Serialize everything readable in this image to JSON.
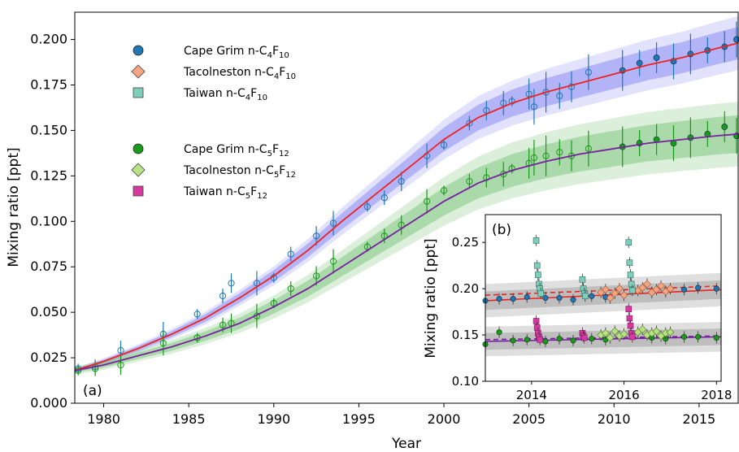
{
  "panel_main": {
    "tag": "(a)"
  },
  "panel_inset": {
    "tag": "(b)"
  },
  "legend": [
    {
      "name": "Cape Grim n-C",
      "sub": "4",
      "mid": "F",
      "sub2": "10",
      "marker": "circle",
      "color": "#1f77b4"
    },
    {
      "name": "Tacolneston n-C",
      "sub": "4",
      "mid": "F",
      "sub2": "10",
      "marker": "diamond",
      "color": "#f4a582"
    },
    {
      "name": "Taiwan n-C",
      "sub": "4",
      "mid": "F",
      "sub2": "10",
      "marker": "square",
      "color": "#7fcdbb"
    },
    {
      "name": "Cape Grim n-C",
      "sub": "5",
      "mid": "F",
      "sub2": "12",
      "marker": "circle",
      "color": "#1a9a1a"
    },
    {
      "name": "Tacolneston n-C",
      "sub": "5",
      "mid": "F",
      "sub2": "12",
      "marker": "diamond",
      "color": "#b8e186"
    },
    {
      "name": "Taiwan n-C",
      "sub": "5",
      "mid": "F",
      "sub2": "12",
      "marker": "square",
      "color": "#d63aa0"
    }
  ],
  "colors": {
    "c4_band": "#7b7bf2",
    "c4_line": "#ee2222",
    "c4_points": "#1f77b4",
    "c5_band": "#6fbf6f",
    "c5_line": "#7a1fa0",
    "c5_points": "#1a9a1a",
    "inset_band": "#808080"
  },
  "chart_data": [
    {
      "type": "line",
      "panel": "(a)",
      "xlabel": "Year",
      "ylabel": "Mixing ratio [ppt]",
      "xlim": [
        1978.3,
        2017.3
      ],
      "ylim": [
        0.0,
        0.215
      ],
      "xticks": [
        1980,
        1985,
        1990,
        1995,
        2000,
        2005,
        2010,
        2015
      ],
      "xtick_labels": [
        "1980",
        "1985",
        "1990",
        "1995",
        "2000",
        "2005",
        "2010",
        "2015"
      ],
      "yticks": [
        0.0,
        0.025,
        0.05,
        0.075,
        0.1,
        0.125,
        0.15,
        0.175,
        0.2
      ],
      "ytick_labels": [
        "0.000",
        "0.025",
        "0.050",
        "0.075",
        "0.100",
        "0.125",
        "0.150",
        "0.175",
        "0.200"
      ],
      "series": [
        {
          "name": "n-C4F10 model",
          "x": [
            1978.3,
            1980,
            1982,
            1984,
            1986,
            1988,
            1990,
            1992,
            1994,
            1996,
            1998,
            2000,
            2002,
            2004,
            2006,
            2008,
            2010,
            2012,
            2014,
            2016,
            2017.3
          ],
          "y": [
            0.018,
            0.023,
            0.03,
            0.038,
            0.047,
            0.058,
            0.07,
            0.084,
            0.1,
            0.115,
            0.13,
            0.145,
            0.157,
            0.165,
            0.171,
            0.176,
            0.181,
            0.186,
            0.19,
            0.195,
            0.198
          ]
        },
        {
          "name": "n-C5F12 model",
          "x": [
            1978.3,
            1980,
            1982,
            1984,
            1986,
            1988,
            1990,
            1992,
            1994,
            1996,
            1998,
            2000,
            2002,
            2004,
            2006,
            2008,
            2010,
            2012,
            2014,
            2016,
            2017.3
          ],
          "y": [
            0.018,
            0.021,
            0.026,
            0.031,
            0.037,
            0.044,
            0.053,
            0.063,
            0.075,
            0.087,
            0.099,
            0.111,
            0.121,
            0.128,
            0.133,
            0.137,
            0.14,
            0.143,
            0.145,
            0.147,
            0.148
          ]
        },
        {
          "name": "Cape Grim n-C4F10",
          "x": [
            1978.5,
            1979.5,
            1981,
            1983.5,
            1985.5,
            1987,
            1987.5,
            1989,
            1990,
            1991,
            1992.5,
            1993.5,
            1995.5,
            1996.5,
            1997.5,
            1999,
            2000,
            2001.5,
            2002.5,
            2003.5,
            2004,
            2005,
            2005.3,
            2006,
            2006.8,
            2007.5,
            2008.5,
            2010.5,
            2011.5,
            2012.5,
            2013.5,
            2014.5,
            2015.5,
            2016.5,
            2017.2
          ],
          "y": [
            0.019,
            0.02,
            0.029,
            0.038,
            0.049,
            0.059,
            0.066,
            0.066,
            0.069,
            0.082,
            0.092,
            0.099,
            0.108,
            0.113,
            0.122,
            0.136,
            0.142,
            0.154,
            0.161,
            0.165,
            0.166,
            0.17,
            0.163,
            0.171,
            0.169,
            0.174,
            0.182,
            0.183,
            0.187,
            0.19,
            0.188,
            0.192,
            0.194,
            0.196,
            0.2
          ]
        },
        {
          "name": "Cape Grim n-C5F12",
          "x": [
            1978.5,
            1979.5,
            1981,
            1983.5,
            1985.5,
            1987,
            1987.5,
            1989,
            1990,
            1991,
            1992.5,
            1993.5,
            1995.5,
            1996.5,
            1997.5,
            1999,
            2000,
            2001.5,
            2002.5,
            2003.5,
            2004,
            2005,
            2005.3,
            2006,
            2006.8,
            2007.5,
            2008.5,
            2010.5,
            2011.5,
            2012.5,
            2013.5,
            2014.5,
            2015.5,
            2016.5,
            2017.2
          ],
          "y": [
            0.018,
            0.019,
            0.021,
            0.033,
            0.036,
            0.043,
            0.044,
            0.048,
            0.055,
            0.063,
            0.07,
            0.078,
            0.086,
            0.092,
            0.098,
            0.111,
            0.117,
            0.122,
            0.124,
            0.126,
            0.129,
            0.132,
            0.135,
            0.136,
            0.138,
            0.136,
            0.14,
            0.141,
            0.143,
            0.145,
            0.143,
            0.146,
            0.148,
            0.152,
            0.147
          ]
        }
      ]
    },
    {
      "type": "scatter",
      "panel": "(b)",
      "ylabel": "Mixing ratio [ppt]",
      "xlim": [
        2013.0,
        2018.1
      ],
      "ylim": [
        0.1,
        0.28
      ],
      "xticks": [
        2014,
        2016,
        2018
      ],
      "xtick_labels": [
        "2014",
        "2016",
        "2018"
      ],
      "yticks": [
        0.1,
        0.15,
        0.2,
        0.25
      ],
      "ytick_labels": [
        "0.10",
        "0.15",
        "0.20",
        "0.25"
      ],
      "series": [
        {
          "name": "n-C4F10 model",
          "x": [
            2013.0,
            2018.1
          ],
          "y": [
            0.187,
            0.199
          ]
        },
        {
          "name": "n-C4F10 model (dashed)",
          "x": [
            2013.0,
            2018.1
          ],
          "y": [
            0.193,
            0.203
          ]
        },
        {
          "name": "n-C5F12 model",
          "x": [
            2013.0,
            2018.1
          ],
          "y": [
            0.143,
            0.148
          ]
        },
        {
          "name": "n-C5F12 model (dashed)",
          "x": [
            2013.0,
            2018.1
          ],
          "y": [
            0.145,
            0.149
          ]
        },
        {
          "name": "Taiwan n-C4F10",
          "x": [
            2014.1,
            2014.12,
            2014.14,
            2014.16,
            2014.18,
            2014.2,
            2015.1,
            2015.12,
            2015.14,
            2015.16,
            2016.1,
            2016.12,
            2016.14,
            2016.16,
            2016.18
          ],
          "y": [
            0.252,
            0.225,
            0.215,
            0.205,
            0.2,
            0.195,
            0.21,
            0.2,
            0.195,
            0.192,
            0.25,
            0.228,
            0.215,
            0.205,
            0.198
          ]
        },
        {
          "name": "Taiwan n-C5F12",
          "x": [
            2014.1,
            2014.12,
            2014.14,
            2014.16,
            2014.18,
            2015.1,
            2015.12,
            2015.14,
            2016.1,
            2016.12,
            2016.14,
            2016.16,
            2016.18
          ],
          "y": [
            0.165,
            0.158,
            0.152,
            0.148,
            0.145,
            0.152,
            0.149,
            0.147,
            0.178,
            0.168,
            0.16,
            0.152,
            0.148
          ]
        },
        {
          "name": "Tacolneston n-C4F10",
          "x": [
            2015.5,
            2015.6,
            2015.7,
            2015.8,
            2015.9,
            2016.0,
            2016.3,
            2016.4,
            2016.5,
            2016.6,
            2016.7,
            2016.8,
            2016.9,
            2017.0
          ],
          "y": [
            0.196,
            0.199,
            0.19,
            0.195,
            0.2,
            0.193,
            0.198,
            0.201,
            0.205,
            0.196,
            0.199,
            0.203,
            0.197,
            0.2
          ]
        },
        {
          "name": "Tacolneston n-C5F12",
          "x": [
            2015.5,
            2015.6,
            2015.7,
            2015.8,
            2015.9,
            2016.0,
            2016.3,
            2016.4,
            2016.5,
            2016.6,
            2016.7,
            2016.8,
            2016.9,
            2017.0
          ],
          "y": [
            0.15,
            0.152,
            0.147,
            0.154,
            0.149,
            0.151,
            0.153,
            0.156,
            0.15,
            0.152,
            0.154,
            0.149,
            0.152,
            0.153
          ]
        },
        {
          "name": "Cape Grim n-C4F10",
          "x": [
            2013.0,
            2013.3,
            2013.6,
            2013.9,
            2014.3,
            2014.6,
            2014.9,
            2015.3,
            2015.6,
            2016.6,
            2016.9,
            2017.3,
            2017.6,
            2018.0
          ],
          "y": [
            0.187,
            0.189,
            0.189,
            0.191,
            0.19,
            0.19,
            0.188,
            0.192,
            0.191,
            0.196,
            0.197,
            0.199,
            0.201,
            0.2
          ]
        },
        {
          "name": "Cape Grim n-C5F12",
          "x": [
            2013.0,
            2013.3,
            2013.6,
            2013.9,
            2014.3,
            2014.6,
            2014.9,
            2015.3,
            2015.6,
            2016.6,
            2016.9,
            2017.3,
            2017.6,
            2018.0
          ],
          "y": [
            0.14,
            0.153,
            0.144,
            0.145,
            0.143,
            0.146,
            0.144,
            0.146,
            0.145,
            0.147,
            0.146,
            0.148,
            0.148,
            0.147
          ]
        }
      ]
    }
  ]
}
